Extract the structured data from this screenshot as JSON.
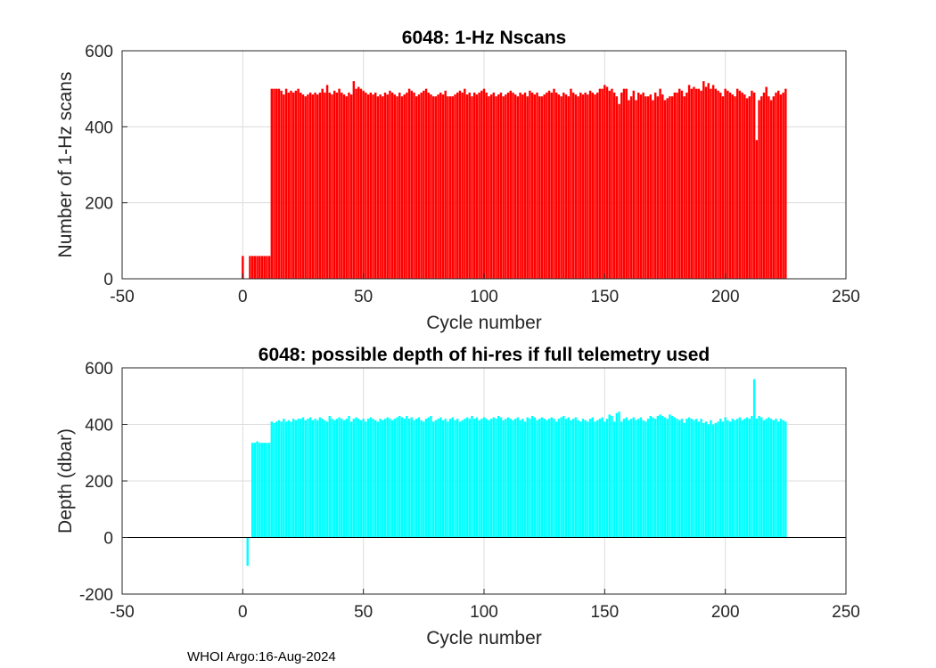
{
  "footer": "WHOI Argo:16-Aug-2024",
  "chart_data": [
    {
      "type": "bar",
      "title": "6048: 1-Hz Nscans",
      "xlabel": "Cycle number",
      "ylabel": "Number of 1-Hz scans",
      "xlim": [
        -50,
        250
      ],
      "ylim": [
        0,
        600
      ],
      "xticks": [
        -50,
        0,
        50,
        100,
        150,
        200,
        250
      ],
      "yticks": [
        0,
        200,
        400,
        600
      ],
      "grid": true,
      "color": "#ff0000",
      "series": [
        {
          "name": "Nscans",
          "x_start": 0,
          "values": [
            60,
            0,
            0,
            60,
            60,
            60,
            60,
            60,
            60,
            60,
            60,
            60,
            500,
            500,
            500,
            500,
            495,
            485,
            500,
            490,
            495,
            490,
            495,
            500,
            490,
            485,
            480,
            485,
            490,
            485,
            490,
            485,
            490,
            500,
            490,
            510,
            490,
            485,
            495,
            490,
            500,
            490,
            485,
            480,
            490,
            485,
            520,
            500,
            505,
            500,
            495,
            490,
            485,
            490,
            485,
            490,
            480,
            485,
            480,
            490,
            485,
            495,
            490,
            485,
            480,
            490,
            480,
            485,
            490,
            500,
            495,
            490,
            480,
            485,
            490,
            495,
            500,
            490,
            485,
            480,
            480,
            485,
            490,
            485,
            495,
            480,
            480,
            480,
            485,
            490,
            495,
            490,
            500,
            485,
            490,
            480,
            490,
            485,
            490,
            495,
            500,
            490,
            480,
            485,
            490,
            480,
            485,
            490,
            480,
            485,
            490,
            495,
            490,
            485,
            480,
            490,
            485,
            490,
            480,
            495,
            490,
            485,
            490,
            480,
            480,
            485,
            490,
            495,
            490,
            500,
            490,
            485,
            480,
            490,
            485,
            480,
            500,
            490,
            485,
            480,
            490,
            485,
            490,
            485,
            495,
            490,
            485,
            490,
            500,
            500,
            510,
            505,
            495,
            500,
            490,
            480,
            460,
            490,
            500,
            500,
            470,
            480,
            495,
            470,
            490,
            485,
            490,
            480,
            480,
            485,
            470,
            490,
            480,
            500,
            485,
            470,
            475,
            480,
            480,
            490,
            490,
            500,
            495,
            480,
            490,
            510,
            500,
            505,
            500,
            500,
            495,
            520,
            505,
            515,
            500,
            510,
            500,
            495,
            490,
            480,
            500,
            495,
            490,
            485,
            480,
            500,
            495,
            490,
            485,
            475,
            480,
            495,
            490,
            365,
            470,
            480,
            490,
            505,
            480,
            470,
            480,
            490,
            495,
            485,
            490,
            500
          ]
        }
      ]
    },
    {
      "type": "bar",
      "title": "6048: possible depth of hi-res if full telemetry used",
      "xlabel": "Cycle number",
      "ylabel": "Depth (dbar)",
      "xlim": [
        -50,
        250
      ],
      "ylim": [
        -200,
        600
      ],
      "xticks": [
        -50,
        0,
        50,
        100,
        150,
        200,
        250
      ],
      "yticks": [
        -200,
        0,
        200,
        400,
        600
      ],
      "grid": true,
      "color": "#00ffff",
      "series": [
        {
          "name": "Depth",
          "x_start": 0,
          "values": [
            0,
            0,
            -100,
            0,
            335,
            335,
            340,
            335,
            335,
            335,
            335,
            335,
            410,
            405,
            410,
            415,
            410,
            420,
            410,
            415,
            410,
            420,
            415,
            420,
            420,
            425,
            415,
            420,
            425,
            415,
            420,
            415,
            425,
            420,
            415,
            410,
            430,
            420,
            415,
            420,
            425,
            420,
            415,
            420,
            430,
            410,
            420,
            425,
            420,
            415,
            420,
            410,
            420,
            425,
            420,
            415,
            410,
            420,
            415,
            420,
            425,
            420,
            415,
            420,
            425,
            430,
            425,
            420,
            430,
            420,
            425,
            415,
            420,
            425,
            415,
            410,
            420,
            425,
            430,
            410,
            415,
            420,
            425,
            415,
            420,
            410,
            420,
            425,
            415,
            420,
            410,
            415,
            420,
            425,
            420,
            430,
            420,
            425,
            415,
            420,
            425,
            420,
            415,
            420,
            425,
            420,
            430,
            425,
            415,
            420,
            425,
            420,
            415,
            420,
            425,
            415,
            420,
            410,
            425,
            420,
            430,
            425,
            415,
            420,
            425,
            420,
            415,
            420,
            425,
            420,
            410,
            420,
            425,
            430,
            420,
            425,
            415,
            420,
            425,
            415,
            410,
            420,
            415,
            410,
            420,
            425,
            410,
            415,
            420,
            425,
            410,
            420,
            435,
            430,
            410,
            440,
            445,
            410,
            420,
            425,
            415,
            420,
            425,
            415,
            420,
            425,
            415,
            410,
            420,
            430,
            425,
            420,
            430,
            435,
            430,
            425,
            420,
            435,
            430,
            425,
            420,
            415,
            420,
            405,
            420,
            425,
            420,
            415,
            420,
            410,
            420,
            405,
            410,
            400,
            415,
            400,
            405,
            410,
            420,
            410,
            425,
            415,
            410,
            420,
            415,
            420,
            425,
            415,
            420,
            425,
            420,
            430,
            560,
            420,
            430,
            425,
            415,
            420,
            425,
            420,
            415,
            420,
            410,
            420,
            415,
            410
          ]
        }
      ]
    }
  ]
}
